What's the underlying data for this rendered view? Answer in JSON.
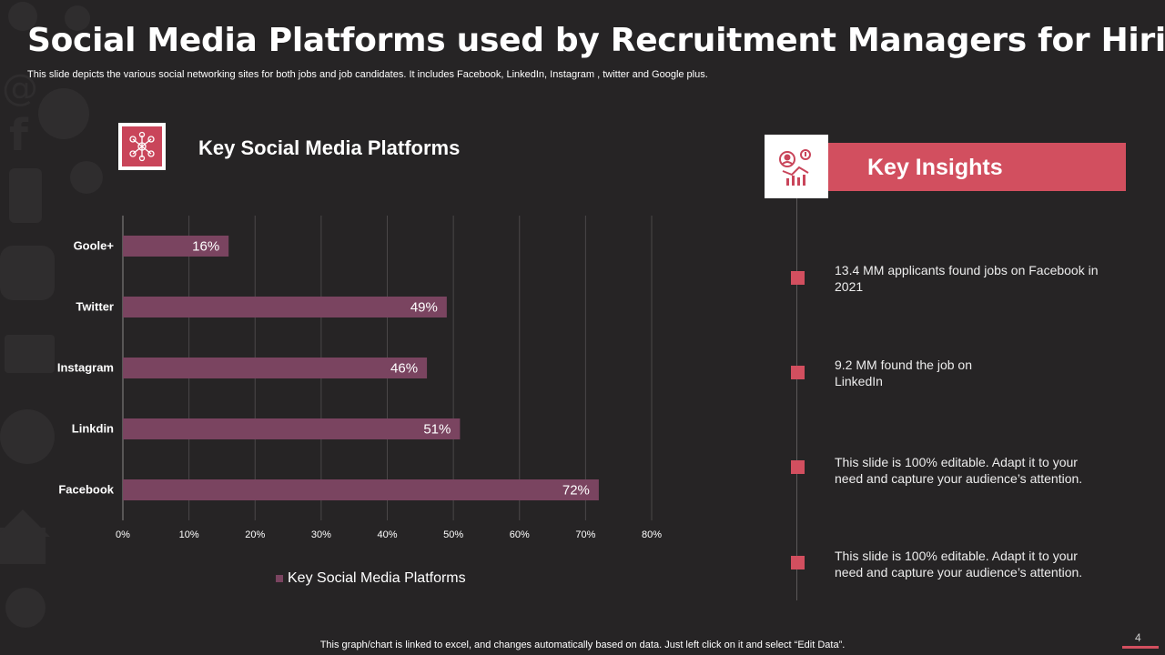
{
  "header": {
    "title": "Social Media Platforms used by Recruitment Managers for Hiring",
    "subtitle": "This slide depicts the various social networking sites for both jobs and job candidates. It includes Facebook, LinkedIn, Instagram , twitter and Google plus."
  },
  "chart_section": {
    "heading": "Key Social Media Platforms",
    "icon": "network-people-icon"
  },
  "chart_data": {
    "type": "bar",
    "orientation": "horizontal",
    "categories": [
      "Goole+",
      "Twitter",
      "Instagram",
      "Linkdin",
      "Facebook"
    ],
    "series": [
      {
        "name": "Key Social Media Platforms",
        "values": [
          16,
          49,
          46,
          51,
          72
        ]
      }
    ],
    "data_labels": [
      "16%",
      "49%",
      "46%",
      "51%",
      "72%"
    ],
    "x_ticks": [
      "0%",
      "10%",
      "20%",
      "30%",
      "40%",
      "50%",
      "60%",
      "70%",
      "80%"
    ],
    "xlim": [
      0,
      80
    ],
    "grid": true,
    "legend": "bottom",
    "bar_color": "#7a4460"
  },
  "insights": {
    "title": "Key Insights",
    "icon": "analytics-person-icon",
    "items": [
      "13.4 MM  applicants found jobs on Facebook in 2021",
      "9.2 MM  found the job on LinkedIn",
      "This slide is 100% editable. Adapt it to your need and capture your audience’s attention.",
      "This slide is 100% editable. Adapt it to your need and capture your audience’s attention."
    ]
  },
  "footer": {
    "note": "This graph/chart is linked to excel,  and changes automatically based on data. Just left click on it and select “Edit Data”.",
    "page_number": "4"
  },
  "colors": {
    "background": "#262425",
    "accent": "#d24f5f",
    "bar": "#7a4460",
    "grid": "#4a4748"
  }
}
